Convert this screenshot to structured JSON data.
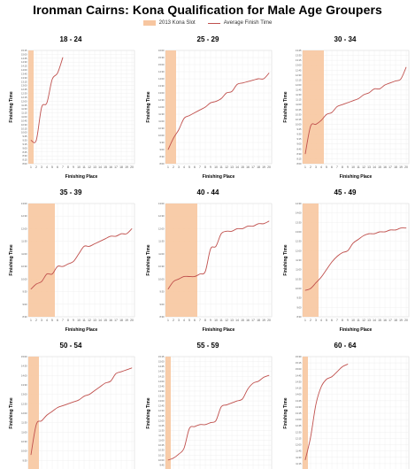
{
  "title": "Ironman Cairns: Kona Qualification for Male Age Groupers",
  "legend": {
    "slot_label": "2013 Kona Slot",
    "line_label": "Average Finish Time",
    "slot_color": "#f7c6a0",
    "line_color": "#c0504d"
  },
  "chart_data": [
    {
      "type": "line",
      "title": "18 - 24",
      "xlabel": "Finishing Place",
      "ylabel": "Finishing Time",
      "x": [
        1,
        2,
        3,
        4,
        5,
        6,
        7
      ],
      "values": [
        9.5,
        9.5,
        11.6,
        11.9,
        13.4,
        13.8,
        14.8
      ],
      "slots": 1,
      "ylim": [
        8.0,
        15.25
      ],
      "ystep": 0.25,
      "xmax": 20,
      "grid": true
    },
    {
      "type": "line",
      "title": "25 - 29",
      "xlabel": "Finishing Place",
      "ylabel": "Finishing Time",
      "x": [
        1,
        2,
        3,
        4,
        5,
        6,
        7,
        8,
        9,
        10,
        11,
        12,
        13,
        14,
        15,
        16,
        17,
        18,
        19,
        20
      ],
      "values": [
        9.0,
        9.8,
        10.4,
        11.2,
        11.4,
        11.6,
        11.8,
        12.0,
        12.3,
        12.4,
        12.6,
        13.0,
        13.1,
        13.6,
        13.7,
        13.8,
        13.9,
        14.0,
        14.0,
        14.4
      ],
      "slots": 2,
      "ylim": [
        8.0,
        16.0
      ],
      "ystep": 0.5,
      "xmax": 20,
      "grid": true
    },
    {
      "type": "line",
      "title": "30 - 34",
      "xlabel": "Finishing Place",
      "ylabel": "Finishing Time",
      "x": [
        1,
        2,
        3,
        4,
        5,
        6,
        7,
        8,
        9,
        10,
        11,
        12,
        13,
        14,
        15,
        16,
        17,
        18,
        19,
        20
      ],
      "values": [
        8.5,
        9.9,
        10.0,
        10.2,
        10.5,
        10.6,
        10.9,
        11.0,
        11.1,
        11.2,
        11.3,
        11.5,
        11.6,
        11.8,
        11.8,
        12.0,
        12.1,
        12.2,
        12.3,
        12.9
      ],
      "slots": 4,
      "ylim": [
        8.0,
        13.75
      ],
      "ystep": 0.25,
      "xmax": 20,
      "grid": true
    },
    {
      "type": "line",
      "title": "35 - 39",
      "xlabel": "Finishing Place",
      "ylabel": "Finishing Time",
      "x": [
        1,
        2,
        3,
        4,
        5,
        6,
        7,
        8,
        9,
        10,
        11,
        12,
        13,
        14,
        15,
        16,
        17,
        18,
        19,
        20
      ],
      "values": [
        9.6,
        9.8,
        9.9,
        10.2,
        10.2,
        10.5,
        10.5,
        10.6,
        10.7,
        11.0,
        11.3,
        11.3,
        11.4,
        11.5,
        11.6,
        11.7,
        11.7,
        11.8,
        11.8,
        12.0
      ],
      "slots": 5,
      "ylim": [
        8.5,
        13.0
      ],
      "ystep": 0.5,
      "xmax": 20,
      "grid": true
    },
    {
      "type": "line",
      "title": "40 - 44",
      "xlabel": "Finishing Place",
      "ylabel": "Finishing Time",
      "x": [
        1,
        2,
        3,
        4,
        5,
        6,
        7,
        8,
        9,
        10,
        11,
        12,
        13,
        14,
        15,
        16,
        17,
        18,
        19,
        20
      ],
      "values": [
        9.6,
        9.9,
        10.0,
        10.1,
        10.1,
        10.1,
        10.2,
        10.3,
        11.2,
        11.3,
        11.8,
        11.9,
        11.9,
        12.0,
        12.0,
        12.1,
        12.1,
        12.2,
        12.2,
        12.3
      ],
      "slots": 6,
      "ylim": [
        8.5,
        13.0
      ],
      "ystep": 0.5,
      "xmax": 20,
      "grid": true
    },
    {
      "type": "line",
      "title": "45 - 49",
      "xlabel": "Finishing Place",
      "ylabel": "Finishing Time",
      "x": [
        1,
        2,
        3,
        4,
        5,
        6,
        7,
        8,
        9,
        10,
        11,
        12,
        13,
        14,
        15,
        16,
        17,
        18,
        19,
        20
      ],
      "values": [
        9.9,
        10.0,
        10.3,
        10.6,
        11.0,
        11.4,
        11.7,
        11.9,
        12.0,
        12.4,
        12.6,
        12.8,
        12.9,
        12.9,
        13.0,
        13.0,
        13.1,
        13.1,
        13.2,
        13.2
      ],
      "slots": 3,
      "ylim": [
        8.5,
        14.5
      ],
      "ystep": 0.5,
      "xmax": 20,
      "grid": true
    },
    {
      "type": "line",
      "title": "50 - 54",
      "xlabel": "Finishing Place",
      "ylabel": "Finishing Time",
      "x": [
        1,
        2,
        3,
        4,
        5,
        6,
        7,
        8,
        9,
        10,
        11,
        12,
        13,
        14,
        15,
        16,
        17,
        18,
        19,
        20
      ],
      "values": [
        9.8,
        11.4,
        11.6,
        11.9,
        12.1,
        12.3,
        12.4,
        12.5,
        12.6,
        12.7,
        12.9,
        13.0,
        13.2,
        13.4,
        13.6,
        13.7,
        14.1,
        14.2,
        14.3,
        14.4
      ],
      "slots": 2,
      "ylim": [
        9.0,
        15.0
      ],
      "ystep": 0.5,
      "xmax": 20,
      "grid": true
    },
    {
      "type": "line",
      "title": "55 - 59",
      "xlabel": "Finishing Place",
      "ylabel": "Finishing Time",
      "x": [
        1,
        2,
        3,
        4,
        5,
        6,
        7,
        8,
        9,
        10,
        11,
        12,
        13,
        14,
        15,
        16,
        17,
        18,
        19,
        20
      ],
      "values": [
        10.0,
        10.1,
        10.3,
        10.6,
        11.6,
        11.7,
        11.8,
        11.8,
        11.9,
        12.0,
        12.7,
        12.8,
        12.9,
        13.0,
        13.1,
        13.6,
        13.9,
        14.0,
        14.2,
        14.3
      ],
      "slots": 1,
      "ylim": [
        9.5,
        15.25
      ],
      "ystep": 0.25,
      "xmax": 20,
      "grid": true
    },
    {
      "type": "line",
      "title": "60 - 64",
      "xlabel": "Finishing Place",
      "ylabel": "Finishing Time",
      "x": [
        1,
        2,
        3,
        4,
        5,
        6,
        7,
        8,
        9
      ],
      "values": [
        11.4,
        12.3,
        13.6,
        14.3,
        14.6,
        14.7,
        14.9,
        15.1,
        15.2
      ],
      "slots": 1,
      "ylim": [
        11.0,
        15.5
      ],
      "ystep": 0.25,
      "xmax": 20,
      "grid": true
    }
  ]
}
